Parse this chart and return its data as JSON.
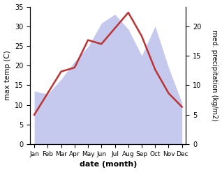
{
  "months": [
    "Jan",
    "Feb",
    "Mar",
    "Apr",
    "May",
    "Jun",
    "Jul",
    "Aug",
    "Sep",
    "Oct",
    "Nov",
    "Dec"
  ],
  "month_indices": [
    0,
    1,
    2,
    3,
    4,
    5,
    6,
    7,
    8,
    9,
    10,
    11
  ],
  "max_temp": [
    7.5,
    13.0,
    18.5,
    19.5,
    26.5,
    25.5,
    29.5,
    33.5,
    27.5,
    19.0,
    13.0,
    9.5
  ],
  "precipitation": [
    9.0,
    8.5,
    11.0,
    14.0,
    16.5,
    20.5,
    22.0,
    19.5,
    15.0,
    20.0,
    13.0,
    7.0
  ],
  "temp_ylim": [
    0,
    35
  ],
  "precip_ylim": [
    0,
    23.3
  ],
  "temp_yticks": [
    0,
    5,
    10,
    15,
    20,
    25,
    30,
    35
  ],
  "precip_yticks": [
    0,
    5,
    10,
    15,
    20
  ],
  "fill_color": "#b0b8e8",
  "fill_alpha": 0.75,
  "line_color": "#bb3333",
  "line_width": 1.8,
  "xlabel": "date (month)",
  "ylabel_left": "max temp (C)",
  "ylabel_right": "med. precipitation (kg/m2)",
  "bg_color": "#ffffff"
}
